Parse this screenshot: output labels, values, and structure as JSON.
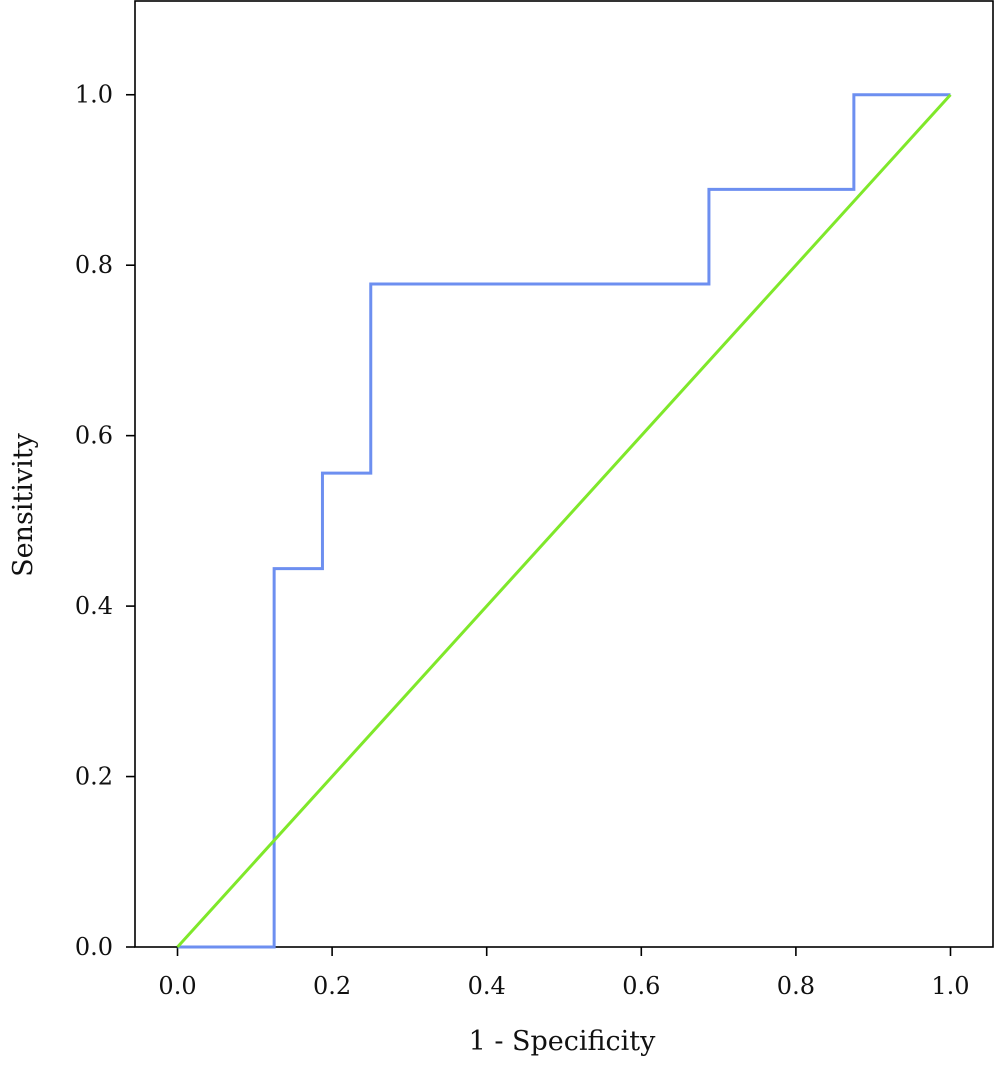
{
  "chart_data": {
    "type": "line",
    "title": "",
    "xlabel": "1 - Specificity",
    "ylabel": "Sensitivity",
    "xlim": [
      -0.055,
      1.055
    ],
    "ylim": [
      0,
      1.11
    ],
    "grid": false,
    "legend": "none",
    "x_ticks": [
      "0.0",
      "0.2",
      "0.4",
      "0.6",
      "0.8",
      "1.0"
    ],
    "y_ticks": [
      "0.0",
      "0.2",
      "0.4",
      "0.6",
      "0.8",
      "1.0"
    ],
    "series": [
      {
        "color": "#6d8ff0",
        "step": true,
        "x": [
          0.0,
          0.125,
          0.125,
          0.1875,
          0.1875,
          0.25,
          0.25,
          0.6875,
          0.6875,
          0.875,
          0.875,
          1.0
        ],
        "y": [
          0.0,
          0.0,
          0.444,
          0.444,
          0.556,
          0.556,
          0.778,
          0.778,
          0.889,
          0.889,
          1.0,
          1.0
        ]
      },
      {
        "color": "#7fe82a",
        "step": false,
        "x": [
          0.0,
          1.0
        ],
        "y": [
          0.0,
          1.0
        ]
      }
    ]
  }
}
